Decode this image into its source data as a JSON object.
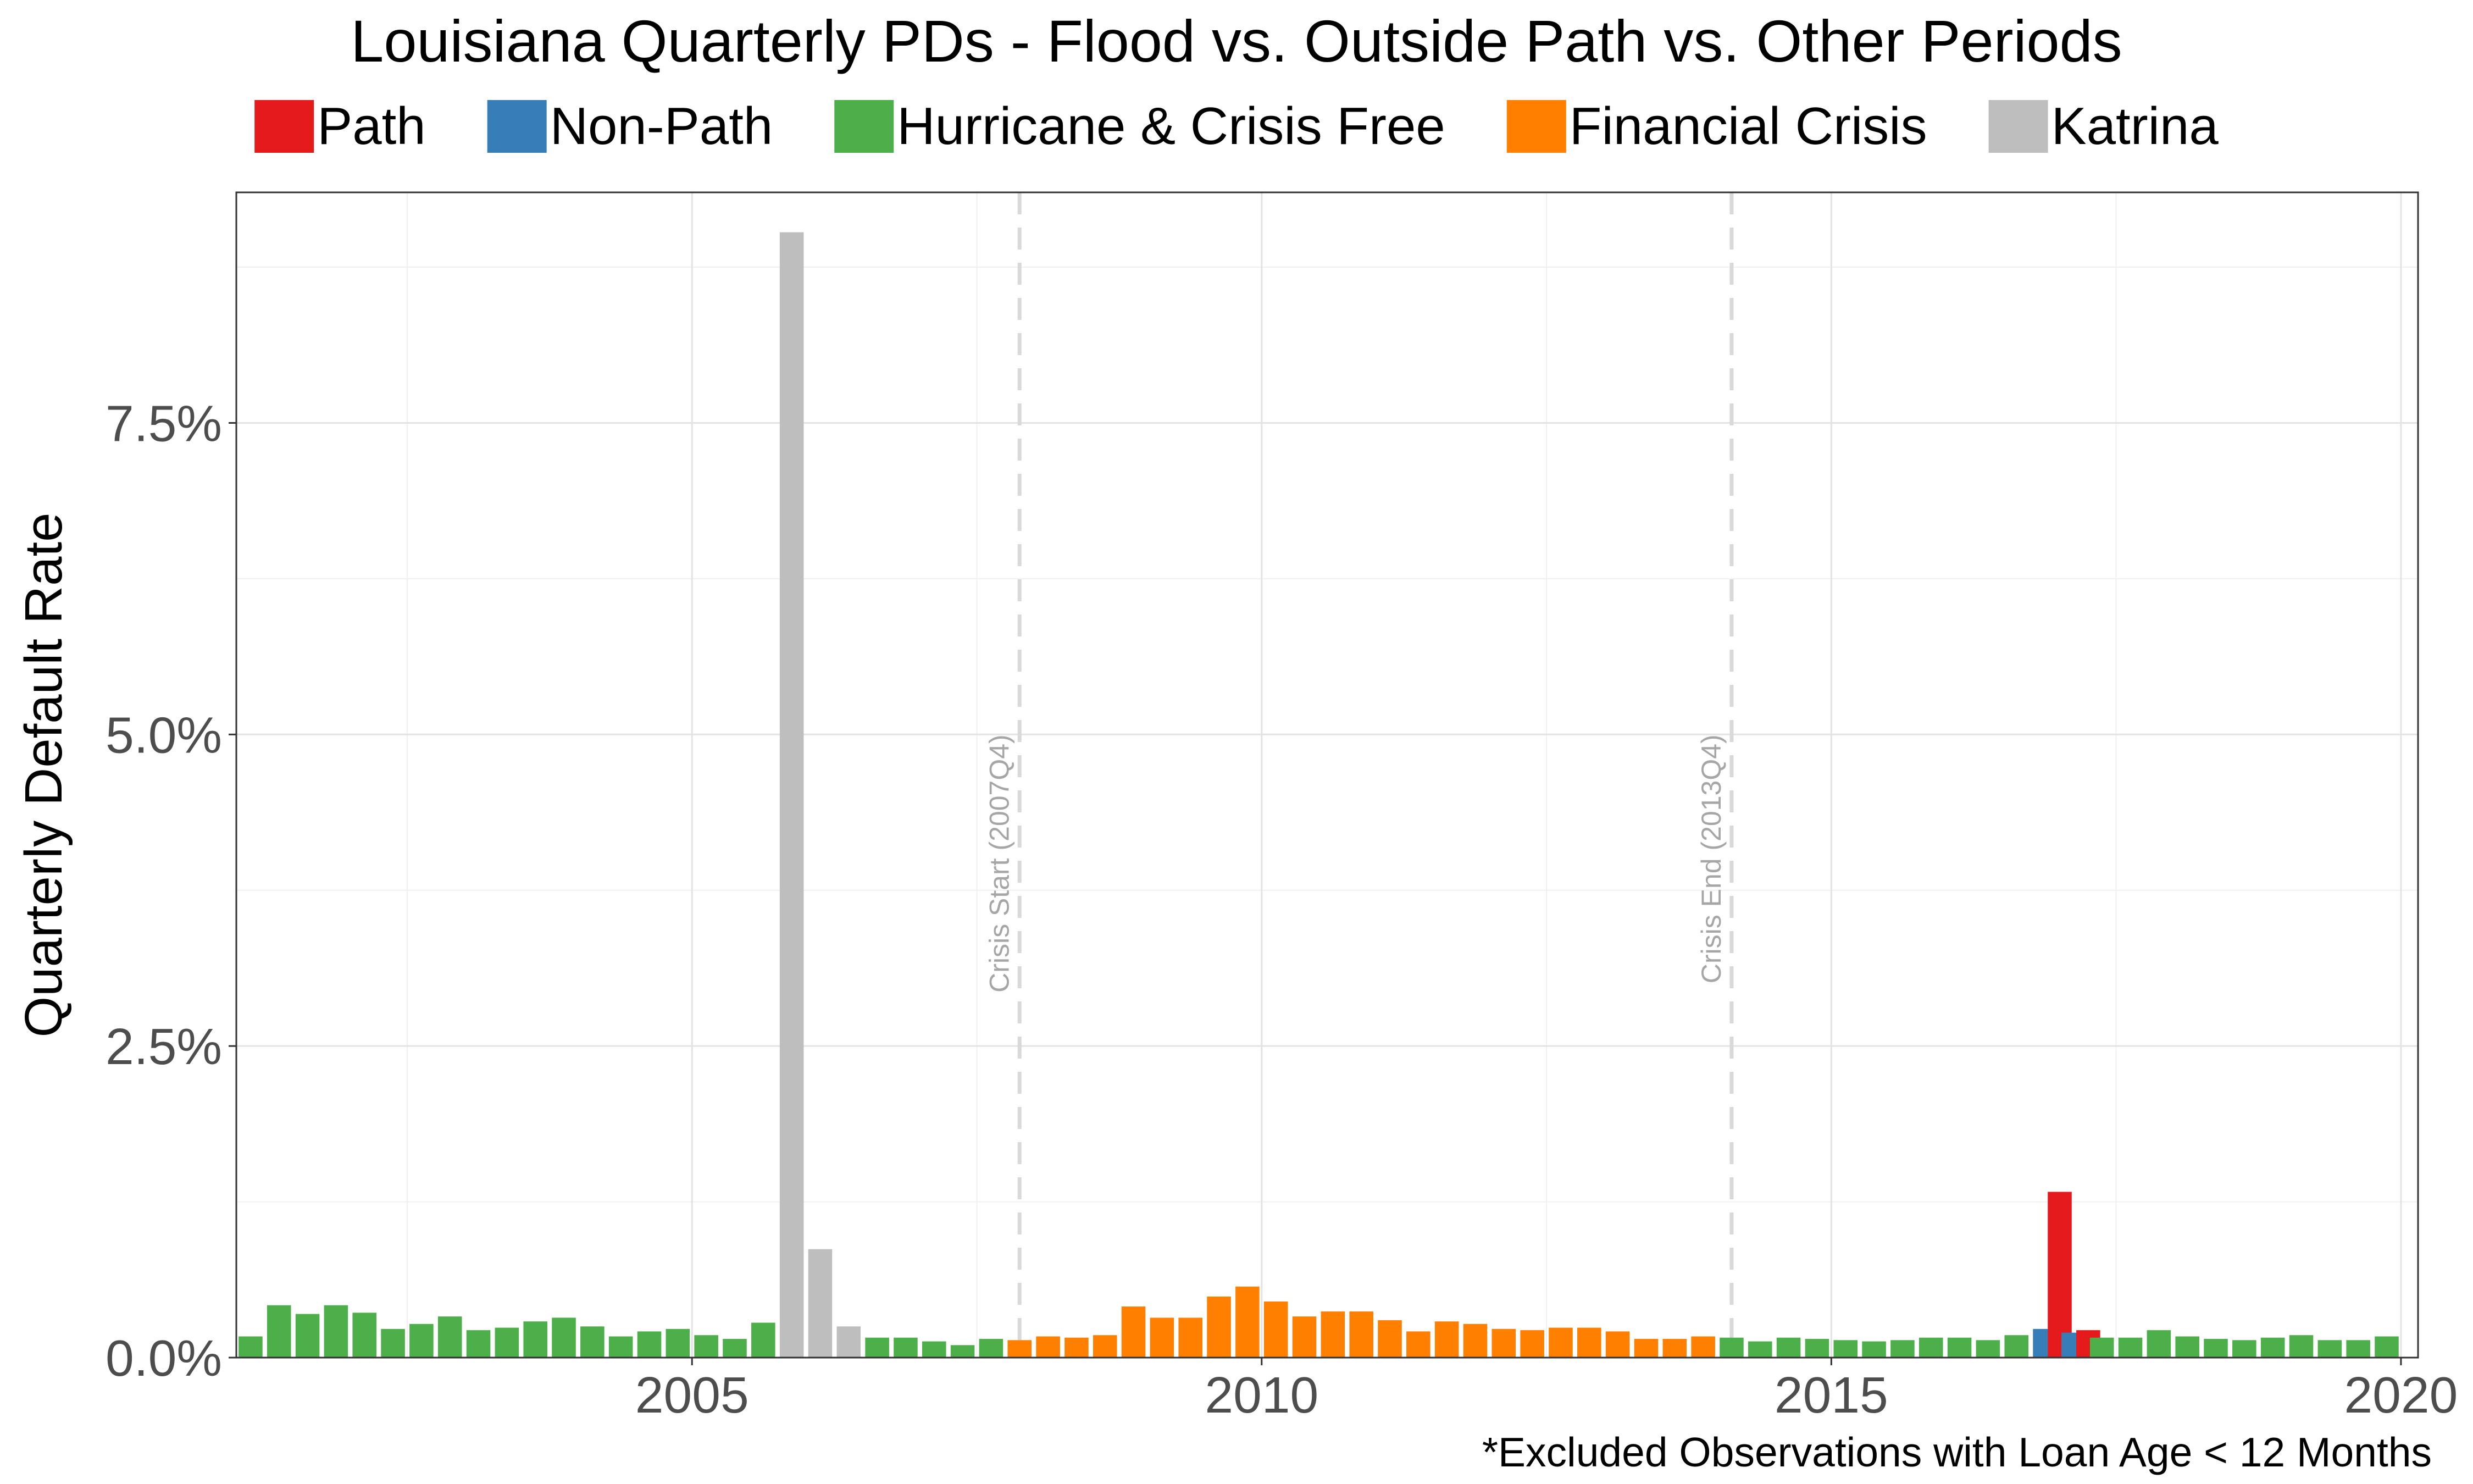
{
  "chart_data": {
    "type": "bar",
    "title": "Louisiana Quarterly PDs - Flood vs. Outside Path vs. Other Periods",
    "ylabel": "Quarterly Default Rate",
    "xlabel": "",
    "caption": "*Excluded Observations with Loan Age < 12 Months",
    "xlim": [
      2001.0,
      2020.15
    ],
    "ylim": [
      0,
      9.35
    ],
    "grid": true,
    "legend_position": "top",
    "x_ticks": [
      {
        "value": 2005,
        "label": "2005"
      },
      {
        "value": 2010,
        "label": "2010"
      },
      {
        "value": 2015,
        "label": "2015"
      },
      {
        "value": 2020,
        "label": "2020"
      }
    ],
    "y_ticks": [
      {
        "value": 0,
        "label": "0.0%"
      },
      {
        "value": 2.5,
        "label": "2.5%"
      },
      {
        "value": 5.0,
        "label": "5.0%"
      },
      {
        "value": 7.5,
        "label": "7.5%"
      }
    ],
    "legend": [
      {
        "key": "path",
        "label": "Path",
        "color": "#E41A1C"
      },
      {
        "key": "nonpath",
        "label": "Non-Path",
        "color": "#377EB8"
      },
      {
        "key": "free",
        "label": "Hurricane & Crisis Free",
        "color": "#4DAF4A"
      },
      {
        "key": "crisis",
        "label": "Financial Crisis",
        "color": "#FF7F00"
      },
      {
        "key": "katrina",
        "label": "Katrina",
        "color": "#BEBEBE"
      }
    ],
    "annotations": [
      {
        "x": 2007.875,
        "label": "Crisis Start (2007Q4)"
      },
      {
        "x": 2014.125,
        "label": "Crisis End (2013Q4)"
      }
    ],
    "bar_width_years": 0.21,
    "bars": [
      {
        "x": 2001.125,
        "value": 0.17,
        "group": "free"
      },
      {
        "x": 2001.375,
        "value": 0.42,
        "group": "free"
      },
      {
        "x": 2001.625,
        "value": 0.35,
        "group": "free"
      },
      {
        "x": 2001.875,
        "value": 0.42,
        "group": "free"
      },
      {
        "x": 2002.125,
        "value": 0.36,
        "group": "free"
      },
      {
        "x": 2002.375,
        "value": 0.23,
        "group": "free"
      },
      {
        "x": 2002.625,
        "value": 0.27,
        "group": "free"
      },
      {
        "x": 2002.875,
        "value": 0.33,
        "group": "free"
      },
      {
        "x": 2003.125,
        "value": 0.22,
        "group": "free"
      },
      {
        "x": 2003.375,
        "value": 0.24,
        "group": "free"
      },
      {
        "x": 2003.625,
        "value": 0.29,
        "group": "free"
      },
      {
        "x": 2003.875,
        "value": 0.32,
        "group": "free"
      },
      {
        "x": 2004.125,
        "value": 0.25,
        "group": "free"
      },
      {
        "x": 2004.375,
        "value": 0.17,
        "group": "free"
      },
      {
        "x": 2004.625,
        "value": 0.21,
        "group": "free"
      },
      {
        "x": 2004.875,
        "value": 0.23,
        "group": "free"
      },
      {
        "x": 2005.125,
        "value": 0.18,
        "group": "free"
      },
      {
        "x": 2005.375,
        "value": 0.15,
        "group": "free"
      },
      {
        "x": 2005.625,
        "value": 0.28,
        "group": "free"
      },
      {
        "x": 2005.875,
        "value": 9.03,
        "group": "katrina"
      },
      {
        "x": 2006.125,
        "value": 0.87,
        "group": "katrina"
      },
      {
        "x": 2006.375,
        "value": 0.25,
        "group": "katrina"
      },
      {
        "x": 2006.625,
        "value": 0.16,
        "group": "free"
      },
      {
        "x": 2006.875,
        "value": 0.16,
        "group": "free"
      },
      {
        "x": 2007.125,
        "value": 0.13,
        "group": "free"
      },
      {
        "x": 2007.375,
        "value": 0.1,
        "group": "free"
      },
      {
        "x": 2007.625,
        "value": 0.15,
        "group": "free"
      },
      {
        "x": 2007.875,
        "value": 0.14,
        "group": "crisis"
      },
      {
        "x": 2008.125,
        "value": 0.17,
        "group": "crisis"
      },
      {
        "x": 2008.375,
        "value": 0.16,
        "group": "crisis"
      },
      {
        "x": 2008.625,
        "value": 0.18,
        "group": "crisis"
      },
      {
        "x": 2008.875,
        "value": 0.41,
        "group": "crisis"
      },
      {
        "x": 2009.125,
        "value": 0.32,
        "group": "crisis"
      },
      {
        "x": 2009.375,
        "value": 0.32,
        "group": "crisis"
      },
      {
        "x": 2009.625,
        "value": 0.49,
        "group": "crisis"
      },
      {
        "x": 2009.875,
        "value": 0.57,
        "group": "crisis"
      },
      {
        "x": 2010.125,
        "value": 0.45,
        "group": "crisis"
      },
      {
        "x": 2010.375,
        "value": 0.33,
        "group": "crisis"
      },
      {
        "x": 2010.625,
        "value": 0.37,
        "group": "crisis"
      },
      {
        "x": 2010.875,
        "value": 0.37,
        "group": "crisis"
      },
      {
        "x": 2011.125,
        "value": 0.3,
        "group": "crisis"
      },
      {
        "x": 2011.375,
        "value": 0.21,
        "group": "crisis"
      },
      {
        "x": 2011.625,
        "value": 0.29,
        "group": "crisis"
      },
      {
        "x": 2011.875,
        "value": 0.27,
        "group": "crisis"
      },
      {
        "x": 2012.125,
        "value": 0.23,
        "group": "crisis"
      },
      {
        "x": 2012.375,
        "value": 0.22,
        "group": "crisis"
      },
      {
        "x": 2012.625,
        "value": 0.24,
        "group": "crisis"
      },
      {
        "x": 2012.875,
        "value": 0.24,
        "group": "crisis"
      },
      {
        "x": 2013.125,
        "value": 0.21,
        "group": "crisis"
      },
      {
        "x": 2013.375,
        "value": 0.15,
        "group": "crisis"
      },
      {
        "x": 2013.625,
        "value": 0.15,
        "group": "crisis"
      },
      {
        "x": 2013.875,
        "value": 0.17,
        "group": "crisis"
      },
      {
        "x": 2014.125,
        "value": 0.16,
        "group": "free"
      },
      {
        "x": 2014.375,
        "value": 0.13,
        "group": "free"
      },
      {
        "x": 2014.625,
        "value": 0.16,
        "group": "free"
      },
      {
        "x": 2014.875,
        "value": 0.15,
        "group": "free"
      },
      {
        "x": 2015.125,
        "value": 0.14,
        "group": "free"
      },
      {
        "x": 2015.375,
        "value": 0.13,
        "group": "free"
      },
      {
        "x": 2015.625,
        "value": 0.14,
        "group": "free"
      },
      {
        "x": 2015.875,
        "value": 0.16,
        "group": "free"
      },
      {
        "x": 2016.125,
        "value": 0.16,
        "group": "free"
      },
      {
        "x": 2016.375,
        "value": 0.14,
        "group": "free"
      },
      {
        "x": 2016.625,
        "value": 0.18,
        "group": "free"
      },
      {
        "x": 2016.875,
        "value": 0.23,
        "group": "nonpath"
      },
      {
        "x": 2017.005,
        "value": 1.33,
        "group": "path"
      },
      {
        "x": 2017.125,
        "value": 0.2,
        "group": "nonpath"
      },
      {
        "x": 2017.255,
        "value": 0.22,
        "group": "path"
      },
      {
        "x": 2017.375,
        "value": 0.16,
        "group": "free"
      },
      {
        "x": 2017.625,
        "value": 0.16,
        "group": "free"
      },
      {
        "x": 2017.875,
        "value": 0.22,
        "group": "free"
      },
      {
        "x": 2018.125,
        "value": 0.17,
        "group": "free"
      },
      {
        "x": 2018.375,
        "value": 0.15,
        "group": "free"
      },
      {
        "x": 2018.625,
        "value": 0.14,
        "group": "free"
      },
      {
        "x": 2018.875,
        "value": 0.16,
        "group": "free"
      },
      {
        "x": 2019.125,
        "value": 0.18,
        "group": "free"
      },
      {
        "x": 2019.375,
        "value": 0.14,
        "group": "free"
      },
      {
        "x": 2019.625,
        "value": 0.14,
        "group": "free"
      },
      {
        "x": 2019.875,
        "value": 0.17,
        "group": "free"
      }
    ]
  }
}
